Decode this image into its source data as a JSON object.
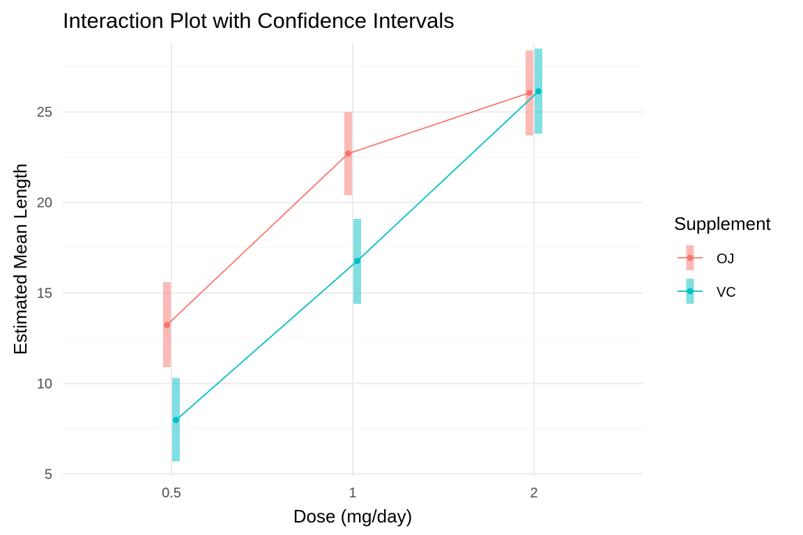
{
  "chart_data": {
    "type": "line",
    "title": "Interaction Plot with Confidence Intervals",
    "xlabel": "Dose (mg/day)",
    "ylabel": "Estimated Mean Length",
    "categories": [
      "0.5",
      "1",
      "2"
    ],
    "ylim": [
      4.9,
      28.8
    ],
    "yticks": [
      5,
      10,
      15,
      20,
      25
    ],
    "grid": true,
    "legend": {
      "title": "Supplement",
      "placement": "right"
    },
    "series": [
      {
        "name": "OJ",
        "color": "#F8766D",
        "values": [
          13.23,
          22.7,
          26.06
        ],
        "ci_lower": [
          10.9,
          20.4,
          23.7
        ],
        "ci_upper": [
          15.6,
          25.0,
          28.4
        ]
      },
      {
        "name": "VC",
        "color": "#00BFC4",
        "values": [
          7.98,
          16.77,
          26.14
        ],
        "ci_lower": [
          5.7,
          14.4,
          23.8
        ],
        "ci_upper": [
          10.3,
          19.1,
          28.5
        ]
      }
    ]
  }
}
